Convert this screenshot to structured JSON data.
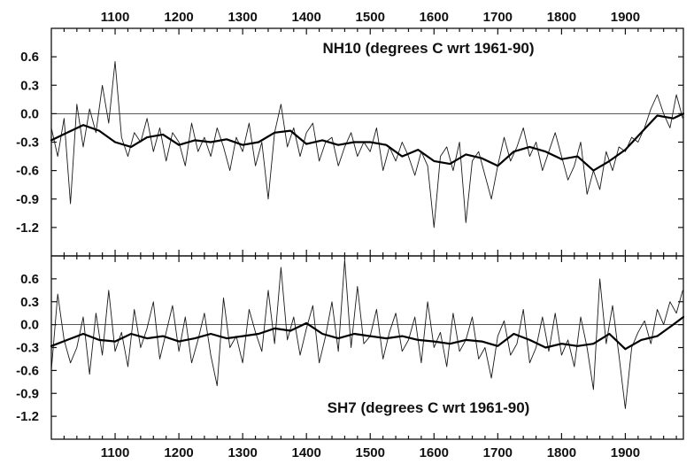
{
  "chart_data": [
    {
      "type": "line",
      "title": "NH10 (degrees C wrt 1961-90)",
      "xlim": [
        1000,
        1991
      ],
      "ylim": [
        -1.5,
        0.9
      ],
      "xticks": [
        1100,
        1200,
        1300,
        1400,
        1500,
        1600,
        1700,
        1800,
        1900
      ],
      "yticks": [
        0.6,
        0.3,
        0.0,
        -0.3,
        -0.6,
        -0.9,
        -1.2
      ],
      "ytick_labels": [
        "0.6",
        "0.3",
        "0.0",
        "-0.3",
        "-0.6",
        "-0.9",
        "-1.2"
      ],
      "reference_line": 0.0,
      "series": [
        {
          "style": "thin",
          "x": [
            1000,
            1010,
            1020,
            1030,
            1040,
            1050,
            1060,
            1070,
            1080,
            1090,
            1100,
            1110,
            1120,
            1130,
            1140,
            1150,
            1160,
            1170,
            1180,
            1190,
            1200,
            1210,
            1220,
            1230,
            1240,
            1250,
            1260,
            1270,
            1280,
            1290,
            1300,
            1310,
            1320,
            1330,
            1340,
            1350,
            1360,
            1370,
            1380,
            1390,
            1400,
            1410,
            1420,
            1430,
            1440,
            1450,
            1460,
            1470,
            1480,
            1490,
            1500,
            1510,
            1520,
            1530,
            1540,
            1550,
            1560,
            1570,
            1580,
            1590,
            1600,
            1610,
            1620,
            1630,
            1640,
            1650,
            1660,
            1670,
            1680,
            1690,
            1700,
            1710,
            1720,
            1730,
            1740,
            1750,
            1760,
            1770,
            1780,
            1790,
            1800,
            1810,
            1820,
            1830,
            1840,
            1850,
            1860,
            1870,
            1880,
            1890,
            1900,
            1910,
            1920,
            1930,
            1940,
            1950,
            1960,
            1970,
            1980,
            1990
          ],
          "values": [
            -0.15,
            -0.45,
            -0.05,
            -0.95,
            0.1,
            -0.35,
            0.05,
            -0.2,
            0.3,
            -0.1,
            0.55,
            -0.25,
            -0.45,
            -0.2,
            -0.3,
            -0.05,
            -0.4,
            -0.15,
            -0.5,
            -0.2,
            -0.3,
            -0.55,
            -0.1,
            -0.4,
            -0.25,
            -0.45,
            -0.15,
            -0.35,
            -0.6,
            -0.25,
            -0.4,
            -0.1,
            -0.55,
            -0.3,
            -0.9,
            -0.2,
            0.1,
            -0.35,
            -0.15,
            -0.45,
            -0.2,
            -0.1,
            -0.5,
            -0.3,
            -0.25,
            -0.55,
            -0.35,
            -0.2,
            -0.45,
            -0.3,
            -0.4,
            -0.15,
            -0.6,
            -0.35,
            -0.5,
            -0.3,
            -0.45,
            -0.65,
            -0.4,
            -0.55,
            -1.2,
            -0.45,
            -0.35,
            -0.6,
            -0.3,
            -1.15,
            -0.5,
            -0.4,
            -0.65,
            -0.9,
            -0.55,
            -0.25,
            -0.5,
            -0.35,
            -0.15,
            -0.45,
            -0.3,
            -0.6,
            -0.4,
            -0.2,
            -0.45,
            -0.7,
            -0.55,
            -0.3,
            -0.85,
            -0.6,
            -0.8,
            -0.4,
            -0.6,
            -0.35,
            -0.4,
            -0.25,
            -0.3,
            -0.15,
            0.05,
            0.2,
            0.0,
            -0.15,
            0.2,
            -0.05
          ]
        },
        {
          "style": "thick",
          "x": [
            1000,
            1025,
            1050,
            1075,
            1100,
            1125,
            1150,
            1175,
            1200,
            1225,
            1250,
            1275,
            1300,
            1325,
            1350,
            1375,
            1400,
            1425,
            1450,
            1475,
            1500,
            1525,
            1550,
            1575,
            1600,
            1625,
            1650,
            1675,
            1700,
            1725,
            1750,
            1775,
            1800,
            1825,
            1850,
            1875,
            1900,
            1925,
            1950,
            1975,
            1991
          ],
          "values": [
            -0.28,
            -0.2,
            -0.12,
            -0.18,
            -0.3,
            -0.35,
            -0.25,
            -0.22,
            -0.33,
            -0.28,
            -0.3,
            -0.27,
            -0.33,
            -0.3,
            -0.2,
            -0.18,
            -0.32,
            -0.28,
            -0.33,
            -0.3,
            -0.3,
            -0.33,
            -0.45,
            -0.38,
            -0.5,
            -0.53,
            -0.43,
            -0.47,
            -0.55,
            -0.4,
            -0.35,
            -0.4,
            -0.48,
            -0.45,
            -0.6,
            -0.5,
            -0.38,
            -0.2,
            -0.02,
            -0.05,
            0.0
          ]
        }
      ]
    },
    {
      "type": "line",
      "title": "SH7 (degrees C wrt 1961-90)",
      "xlim": [
        1000,
        1991
      ],
      "ylim": [
        -1.5,
        0.9
      ],
      "xticks": [
        1100,
        1200,
        1300,
        1400,
        1500,
        1600,
        1700,
        1800,
        1900
      ],
      "yticks": [
        0.6,
        0.3,
        0.0,
        -0.3,
        -0.6,
        -0.9,
        -1.2
      ],
      "ytick_labels": [
        "0.6",
        "0.3",
        "0.0",
        "-0.3",
        "-0.6",
        "-0.9",
        "-1.2"
      ],
      "reference_line": 0.0,
      "series": [
        {
          "style": "thin",
          "x": [
            1000,
            1010,
            1020,
            1030,
            1040,
            1050,
            1060,
            1070,
            1080,
            1090,
            1100,
            1110,
            1120,
            1130,
            1140,
            1150,
            1160,
            1170,
            1180,
            1190,
            1200,
            1210,
            1220,
            1230,
            1240,
            1250,
            1260,
            1270,
            1280,
            1290,
            1300,
            1310,
            1320,
            1330,
            1340,
            1350,
            1360,
            1370,
            1380,
            1390,
            1400,
            1410,
            1420,
            1430,
            1440,
            1450,
            1460,
            1470,
            1480,
            1490,
            1500,
            1510,
            1520,
            1530,
            1540,
            1550,
            1560,
            1570,
            1580,
            1590,
            1600,
            1610,
            1620,
            1630,
            1640,
            1650,
            1660,
            1670,
            1680,
            1690,
            1700,
            1710,
            1720,
            1730,
            1740,
            1750,
            1760,
            1770,
            1780,
            1790,
            1800,
            1810,
            1820,
            1830,
            1840,
            1850,
            1860,
            1870,
            1880,
            1890,
            1900,
            1910,
            1920,
            1930,
            1940,
            1950,
            1960,
            1970,
            1980,
            1990
          ],
          "values": [
            -0.6,
            0.4,
            -0.2,
            -0.5,
            -0.3,
            0.1,
            -0.65,
            0.15,
            -0.4,
            0.45,
            -0.35,
            -0.1,
            -0.55,
            0.2,
            -0.3,
            -0.05,
            0.3,
            -0.45,
            -0.1,
            0.25,
            -0.35,
            0.1,
            -0.5,
            -0.2,
            0.15,
            -0.4,
            -0.8,
            0.35,
            -0.3,
            -0.15,
            -0.5,
            0.2,
            -0.1,
            -0.35,
            0.45,
            -0.25,
            0.75,
            -0.2,
            0.1,
            -0.4,
            -0.05,
            0.25,
            -0.5,
            -0.15,
            0.3,
            -0.35,
            0.85,
            -0.3,
            0.5,
            -0.25,
            -0.15,
            0.2,
            -0.45,
            -0.1,
            0.15,
            -0.35,
            -0.2,
            0.1,
            -0.5,
            0.3,
            -0.3,
            -0.1,
            -0.55,
            0.15,
            -0.35,
            -0.2,
            0.1,
            -0.45,
            -0.3,
            -0.7,
            -0.15,
            0.05,
            -0.4,
            -0.25,
            0.2,
            -0.5,
            -0.3,
            0.1,
            -0.35,
            0.15,
            -0.4,
            -0.2,
            -0.55,
            0.1,
            -0.3,
            -0.85,
            0.6,
            -0.25,
            0.25,
            -0.4,
            -1.1,
            -0.3,
            -0.1,
            0.05,
            -0.25,
            0.2,
            0.0,
            0.3,
            0.15,
            0.45
          ]
        },
        {
          "style": "thick",
          "x": [
            1000,
            1025,
            1050,
            1075,
            1100,
            1125,
            1150,
            1175,
            1200,
            1225,
            1250,
            1275,
            1300,
            1325,
            1350,
            1375,
            1400,
            1425,
            1450,
            1475,
            1500,
            1525,
            1550,
            1575,
            1600,
            1625,
            1650,
            1675,
            1700,
            1725,
            1750,
            1775,
            1800,
            1825,
            1850,
            1875,
            1900,
            1925,
            1950,
            1975,
            1991
          ],
          "values": [
            -0.28,
            -0.2,
            -0.12,
            -0.2,
            -0.22,
            -0.12,
            -0.18,
            -0.15,
            -0.22,
            -0.18,
            -0.12,
            -0.18,
            -0.15,
            -0.12,
            -0.05,
            -0.08,
            0.02,
            -0.12,
            -0.18,
            -0.12,
            -0.15,
            -0.18,
            -0.15,
            -0.2,
            -0.22,
            -0.25,
            -0.2,
            -0.22,
            -0.28,
            -0.12,
            -0.2,
            -0.3,
            -0.25,
            -0.28,
            -0.25,
            -0.12,
            -0.32,
            -0.2,
            -0.15,
            0.0,
            0.1
          ]
        }
      ]
    }
  ]
}
